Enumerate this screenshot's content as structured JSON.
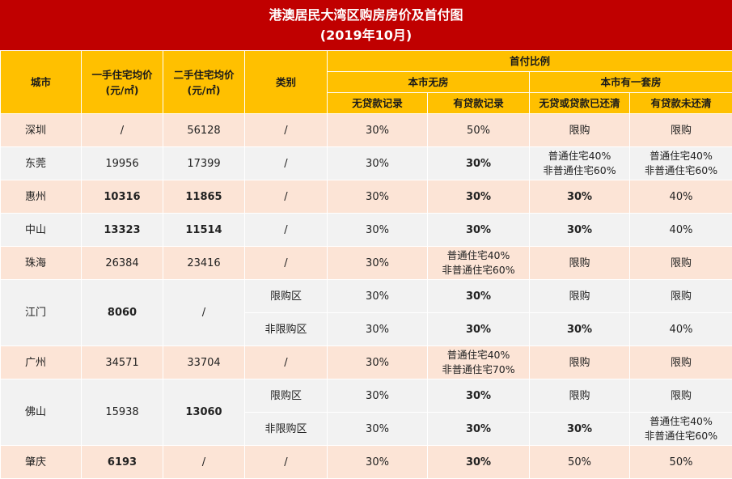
{
  "title": {
    "line1": "港澳居民大湾区购房房价及首付图",
    "line2": "(2019年10月)"
  },
  "headers": {
    "city": "城市",
    "new_price": "一手住宅均价\n(元/㎡)",
    "second_price": "二手住宅均价\n(元/㎡)",
    "category": "类别",
    "down_payment": "首付比例",
    "no_house": "本市无房",
    "one_house": "本市有一套房",
    "no_loan": "无贷款记录",
    "has_loan": "有贷款记录",
    "loan_paid": "无贷或贷款已还清",
    "loan_unpaid": "有贷款未还清"
  },
  "rows": [
    {
      "city": "深圳",
      "new_price": "/",
      "second_price": "56128",
      "subs": [
        {
          "category": "/",
          "c1": "30%",
          "c2": "50%",
          "c3": "限购",
          "c4": "限购"
        }
      ]
    },
    {
      "city": "东莞",
      "new_price": "19956",
      "second_price": "17399",
      "subs": [
        {
          "category": "/",
          "c1": "30%",
          "c2": "30%",
          "c3": "普通住宅40%\n非普通住宅60%",
          "c4": "普通住宅40%\n非普通住宅60%"
        }
      ]
    },
    {
      "city": "惠州",
      "new_price": "10316",
      "second_price": "11865",
      "subs": [
        {
          "category": "/",
          "c1": "30%",
          "c2": "30%",
          "c3": "30%",
          "c4": "40%"
        }
      ]
    },
    {
      "city": "中山",
      "new_price": "13323",
      "second_price": "11514",
      "subs": [
        {
          "category": "/",
          "c1": "30%",
          "c2": "30%",
          "c3": "30%",
          "c4": "40%"
        }
      ]
    },
    {
      "city": "珠海",
      "new_price": "26384",
      "second_price": "23416",
      "subs": [
        {
          "category": "/",
          "c1": "30%",
          "c2": "普通住宅40%\n非普通住宅60%",
          "c3": "限购",
          "c4": "限购"
        }
      ]
    },
    {
      "city": "江门",
      "new_price": "8060",
      "second_price": "/",
      "subs": [
        {
          "category": "限购区",
          "c1": "30%",
          "c2": "30%",
          "c3": "限购",
          "c4": "限购"
        },
        {
          "category": "非限购区",
          "c1": "30%",
          "c2": "30%",
          "c3": "30%",
          "c4": "40%"
        }
      ]
    },
    {
      "city": "广州",
      "new_price": "34571",
      "second_price": "33704",
      "subs": [
        {
          "category": "/",
          "c1": "30%",
          "c2": "普通住宅40%\n非普通住宅70%",
          "c3": "限购",
          "c4": "限购"
        }
      ]
    },
    {
      "city": "佛山",
      "new_price": "15938",
      "second_price": "13060",
      "subs": [
        {
          "category": "限购区",
          "c1": "30%",
          "c2": "30%",
          "c3": "限购",
          "c4": "限购"
        },
        {
          "category": "非限购区",
          "c1": "30%",
          "c2": "30%",
          "c3": "30%",
          "c4": "普通住宅40%\n非普通住宅60%"
        }
      ]
    },
    {
      "city": "肇庆",
      "new_price": "6193",
      "second_price": "/",
      "subs": [
        {
          "category": "/",
          "c1": "30%",
          "c2": "30%",
          "c3": "50%",
          "c4": "50%"
        }
      ]
    }
  ]
}
